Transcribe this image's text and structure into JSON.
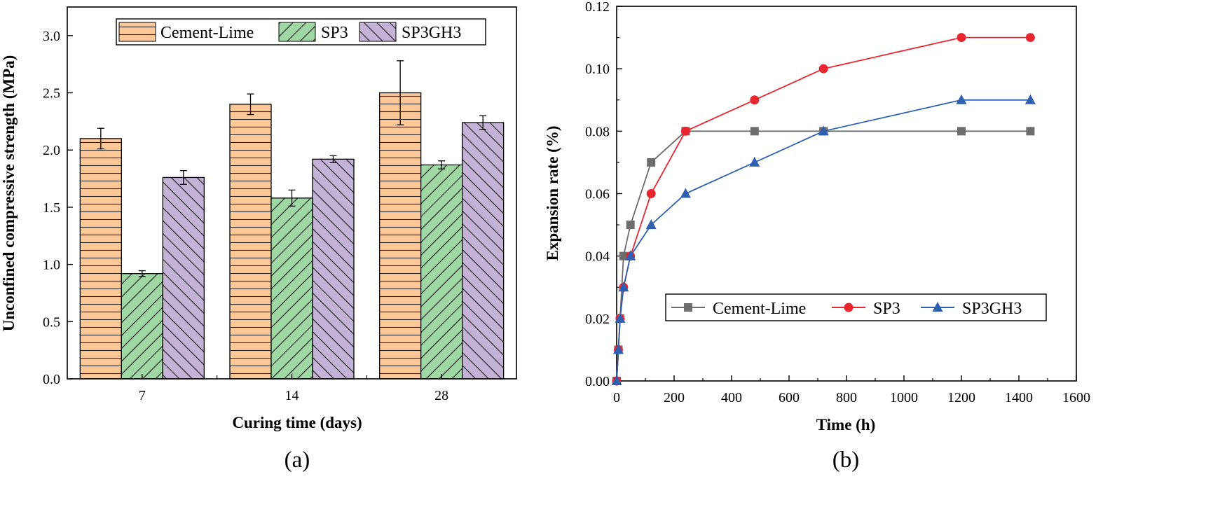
{
  "chart_data": [
    {
      "type": "bar",
      "panel_label": "(a)",
      "xlabel": "Curing time (days)",
      "ylabel": "Unconfined compressive strength (MPa)",
      "ylim": [
        0,
        3.25
      ],
      "yticks": [
        0.0,
        0.5,
        1.0,
        1.5,
        2.0,
        2.5,
        3.0
      ],
      "ytick_labels": [
        "0.0",
        "0.5",
        "1.0",
        "1.5",
        "2.0",
        "2.5",
        "3.0"
      ],
      "categories": [
        "7",
        "14",
        "28"
      ],
      "legend_position": "top",
      "series": [
        {
          "name": "Cement-Lime",
          "color": "#fcc898",
          "pattern": "horizontal",
          "values": [
            2.1,
            2.4,
            2.5
          ],
          "errors": [
            0.09,
            0.09,
            0.28
          ]
        },
        {
          "name": "SP3",
          "color": "#9fd7a5",
          "pattern": "diagonal-right",
          "values": [
            0.92,
            1.58,
            1.87
          ],
          "errors": [
            0.025,
            0.07,
            0.035
          ]
        },
        {
          "name": "SP3GH3",
          "color": "#c4b3d7",
          "pattern": "diagonal-left",
          "values": [
            1.76,
            1.92,
            2.24
          ],
          "errors": [
            0.06,
            0.03,
            0.06
          ]
        }
      ]
    },
    {
      "type": "line",
      "panel_label": "(b)",
      "xlabel": "Time (h)",
      "ylabel": "Expansion rate (%)",
      "xlim": [
        0,
        1600
      ],
      "ylim": [
        0,
        0.12
      ],
      "xticks": [
        0,
        200,
        400,
        600,
        800,
        1000,
        1200,
        1400,
        1600
      ],
      "xtick_labels": [
        "0",
        "200",
        "400",
        "600",
        "800",
        "1000",
        "1200",
        "1400",
        "1600"
      ],
      "yticks": [
        0,
        0.02,
        0.04,
        0.06,
        0.08,
        0.1,
        0.12
      ],
      "ytick_labels": [
        "0.00",
        "0.02",
        "0.04",
        "0.06",
        "0.08",
        "0.10",
        "0.12"
      ],
      "legend_position": "center-right",
      "series": [
        {
          "name": "Cement-Lime",
          "color": "#6d6d6d",
          "marker": "square",
          "x": [
            0,
            6,
            12,
            24,
            48,
            120,
            240,
            480,
            720,
            1200,
            1440
          ],
          "y": [
            0,
            0.01,
            0.02,
            0.04,
            0.05,
            0.07,
            0.08,
            0.08,
            0.08,
            0.08,
            0.08
          ]
        },
        {
          "name": "SP3",
          "color": "#e8262f",
          "marker": "circle",
          "x": [
            0,
            6,
            12,
            24,
            48,
            120,
            240,
            480,
            720,
            1200,
            1440
          ],
          "y": [
            0,
            0.01,
            0.02,
            0.03,
            0.04,
            0.06,
            0.08,
            0.09,
            0.1,
            0.11,
            0.11
          ]
        },
        {
          "name": "SP3GH3",
          "color": "#2e5fb0",
          "marker": "triangle",
          "x": [
            0,
            6,
            12,
            24,
            48,
            120,
            240,
            480,
            720,
            1200,
            1440
          ],
          "y": [
            0,
            0.01,
            0.02,
            0.03,
            0.04,
            0.05,
            0.06,
            0.07,
            0.08,
            0.09,
            0.09
          ]
        }
      ]
    }
  ]
}
